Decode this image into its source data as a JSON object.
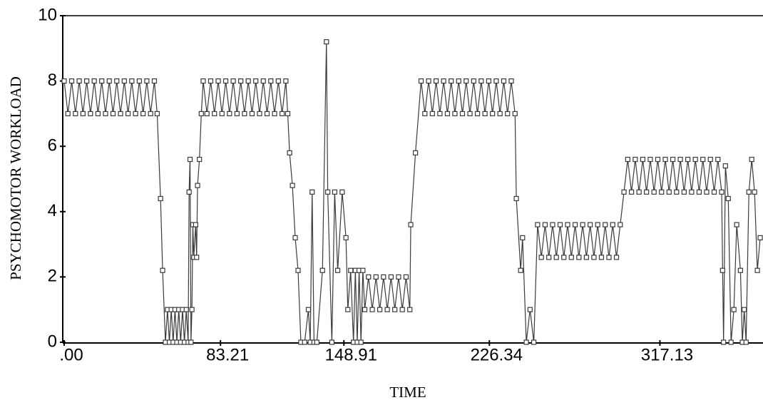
{
  "chart_data": {
    "type": "line",
    "xlabel": "TIME",
    "ylabel": "PSYCHOMOTOR WORKLOAD",
    "color": "#3a3a3a",
    "marker": "square",
    "grid": false,
    "xlim": [
      0,
      372
    ],
    "ylim": [
      0,
      10
    ],
    "xticks": [
      {
        "value": 0,
        "label": ".00"
      },
      83.21,
      148.91,
      226.34,
      317.13
    ],
    "yticks": [
      0,
      2,
      4,
      6,
      8,
      10
    ],
    "x": [
      0,
      2,
      4,
      6,
      8,
      10,
      12,
      14,
      16,
      18,
      20,
      22,
      24,
      26,
      28,
      30,
      32,
      34,
      36,
      38,
      40,
      42,
      44,
      46,
      48,
      49.5,
      51.3,
      52.4,
      53.9,
      55,
      56,
      57,
      58,
      59,
      60,
      61,
      62,
      63,
      64,
      65,
      66,
      66.5,
      67,
      67.5,
      68,
      68.5,
      69,
      70,
      70.5,
      71,
      72,
      73,
      74,
      76,
      78,
      80,
      82,
      84,
      86,
      88,
      90,
      92,
      94,
      96,
      98,
      100,
      102,
      104,
      106,
      108,
      110,
      112,
      114,
      116,
      118,
      119,
      120,
      121.5,
      123,
      124.5,
      126,
      128,
      130,
      131,
      132,
      133,
      134.5,
      137.5,
      139.6,
      140.3,
      142.5,
      144,
      145.6,
      148,
      150,
      151,
      152.5,
      154,
      155,
      156,
      157,
      158,
      159,
      160,
      162,
      164,
      166,
      168,
      170,
      172,
      174,
      176,
      178,
      180,
      182,
      184,
      184.5,
      187,
      190,
      192,
      194,
      196,
      198,
      200,
      202,
      204,
      206,
      208,
      210,
      212,
      214,
      216,
      218,
      220,
      222,
      224,
      226,
      228,
      230,
      232,
      234,
      236,
      238,
      240,
      240.7,
      243,
      244,
      246,
      248,
      250,
      252,
      254,
      256,
      258,
      260,
      262,
      264,
      266,
      268,
      270,
      272,
      274,
      276,
      278,
      280,
      282,
      284,
      286,
      288,
      290,
      292,
      294,
      296,
      298,
      300,
      302,
      304,
      306,
      308,
      310,
      312,
      314,
      316,
      318,
      320,
      322,
      324,
      326,
      328,
      330,
      332,
      334,
      336,
      338,
      340,
      342,
      344,
      346,
      348,
      350,
      350.5,
      351,
      352,
      353.5,
      355,
      356.5,
      358,
      360,
      361,
      362,
      363,
      364.5,
      366,
      367.5,
      369,
      370.5
    ],
    "values": [
      8,
      7,
      8,
      7,
      8,
      7,
      8,
      7,
      8,
      7,
      8,
      7,
      8,
      7,
      8,
      7,
      8,
      7,
      8,
      7,
      8,
      7,
      8,
      7,
      8,
      7,
      4.4,
      2.2,
      0,
      1,
      0,
      1,
      0,
      1,
      0,
      1,
      0,
      1,
      0,
      1,
      0,
      4.6,
      5.6,
      0,
      1,
      3.6,
      2.6,
      3.6,
      2.6,
      4.8,
      5.6,
      7,
      8,
      7,
      8,
      7,
      8,
      7,
      8,
      7,
      8,
      7,
      8,
      7,
      8,
      7,
      8,
      7,
      8,
      7,
      8,
      7,
      8,
      7,
      8,
      7,
      5.8,
      4.8,
      3.2,
      2.2,
      0,
      0,
      1,
      0,
      4.6,
      0,
      0,
      2.2,
      9.2,
      4.6,
      0,
      4.6,
      2.2,
      4.6,
      3.2,
      1,
      2.2,
      0,
      2.2,
      0,
      2.2,
      0,
      2.2,
      1,
      2,
      1,
      2,
      1,
      2,
      1,
      2,
      1,
      2,
      1,
      2,
      1,
      3.6,
      5.8,
      8,
      7,
      8,
      7,
      8,
      7,
      8,
      7,
      8,
      7,
      8,
      7,
      8,
      7,
      8,
      7,
      8,
      7,
      8,
      7,
      8,
      7,
      8,
      7,
      8,
      7,
      4.4,
      2.2,
      3.2,
      0,
      1,
      0,
      3.6,
      2.6,
      3.6,
      2.6,
      3.6,
      2.6,
      3.6,
      2.6,
      3.6,
      2.6,
      3.6,
      2.6,
      3.6,
      2.6,
      3.6,
      2.6,
      3.6,
      2.6,
      3.6,
      2.6,
      3.6,
      2.6,
      3.6,
      4.6,
      5.6,
      4.6,
      5.6,
      4.6,
      5.6,
      4.6,
      5.6,
      4.6,
      5.6,
      4.6,
      5.6,
      4.6,
      5.6,
      4.6,
      5.6,
      4.6,
      5.6,
      4.6,
      5.6,
      4.6,
      5.6,
      4.6,
      5.6,
      4.6,
      5.6,
      4.6,
      2.2,
      0,
      5.4,
      4.4,
      0,
      1,
      3.6,
      2.2,
      0,
      1,
      0,
      4.6,
      5.6,
      4.6,
      2.2,
      3.2
    ]
  }
}
